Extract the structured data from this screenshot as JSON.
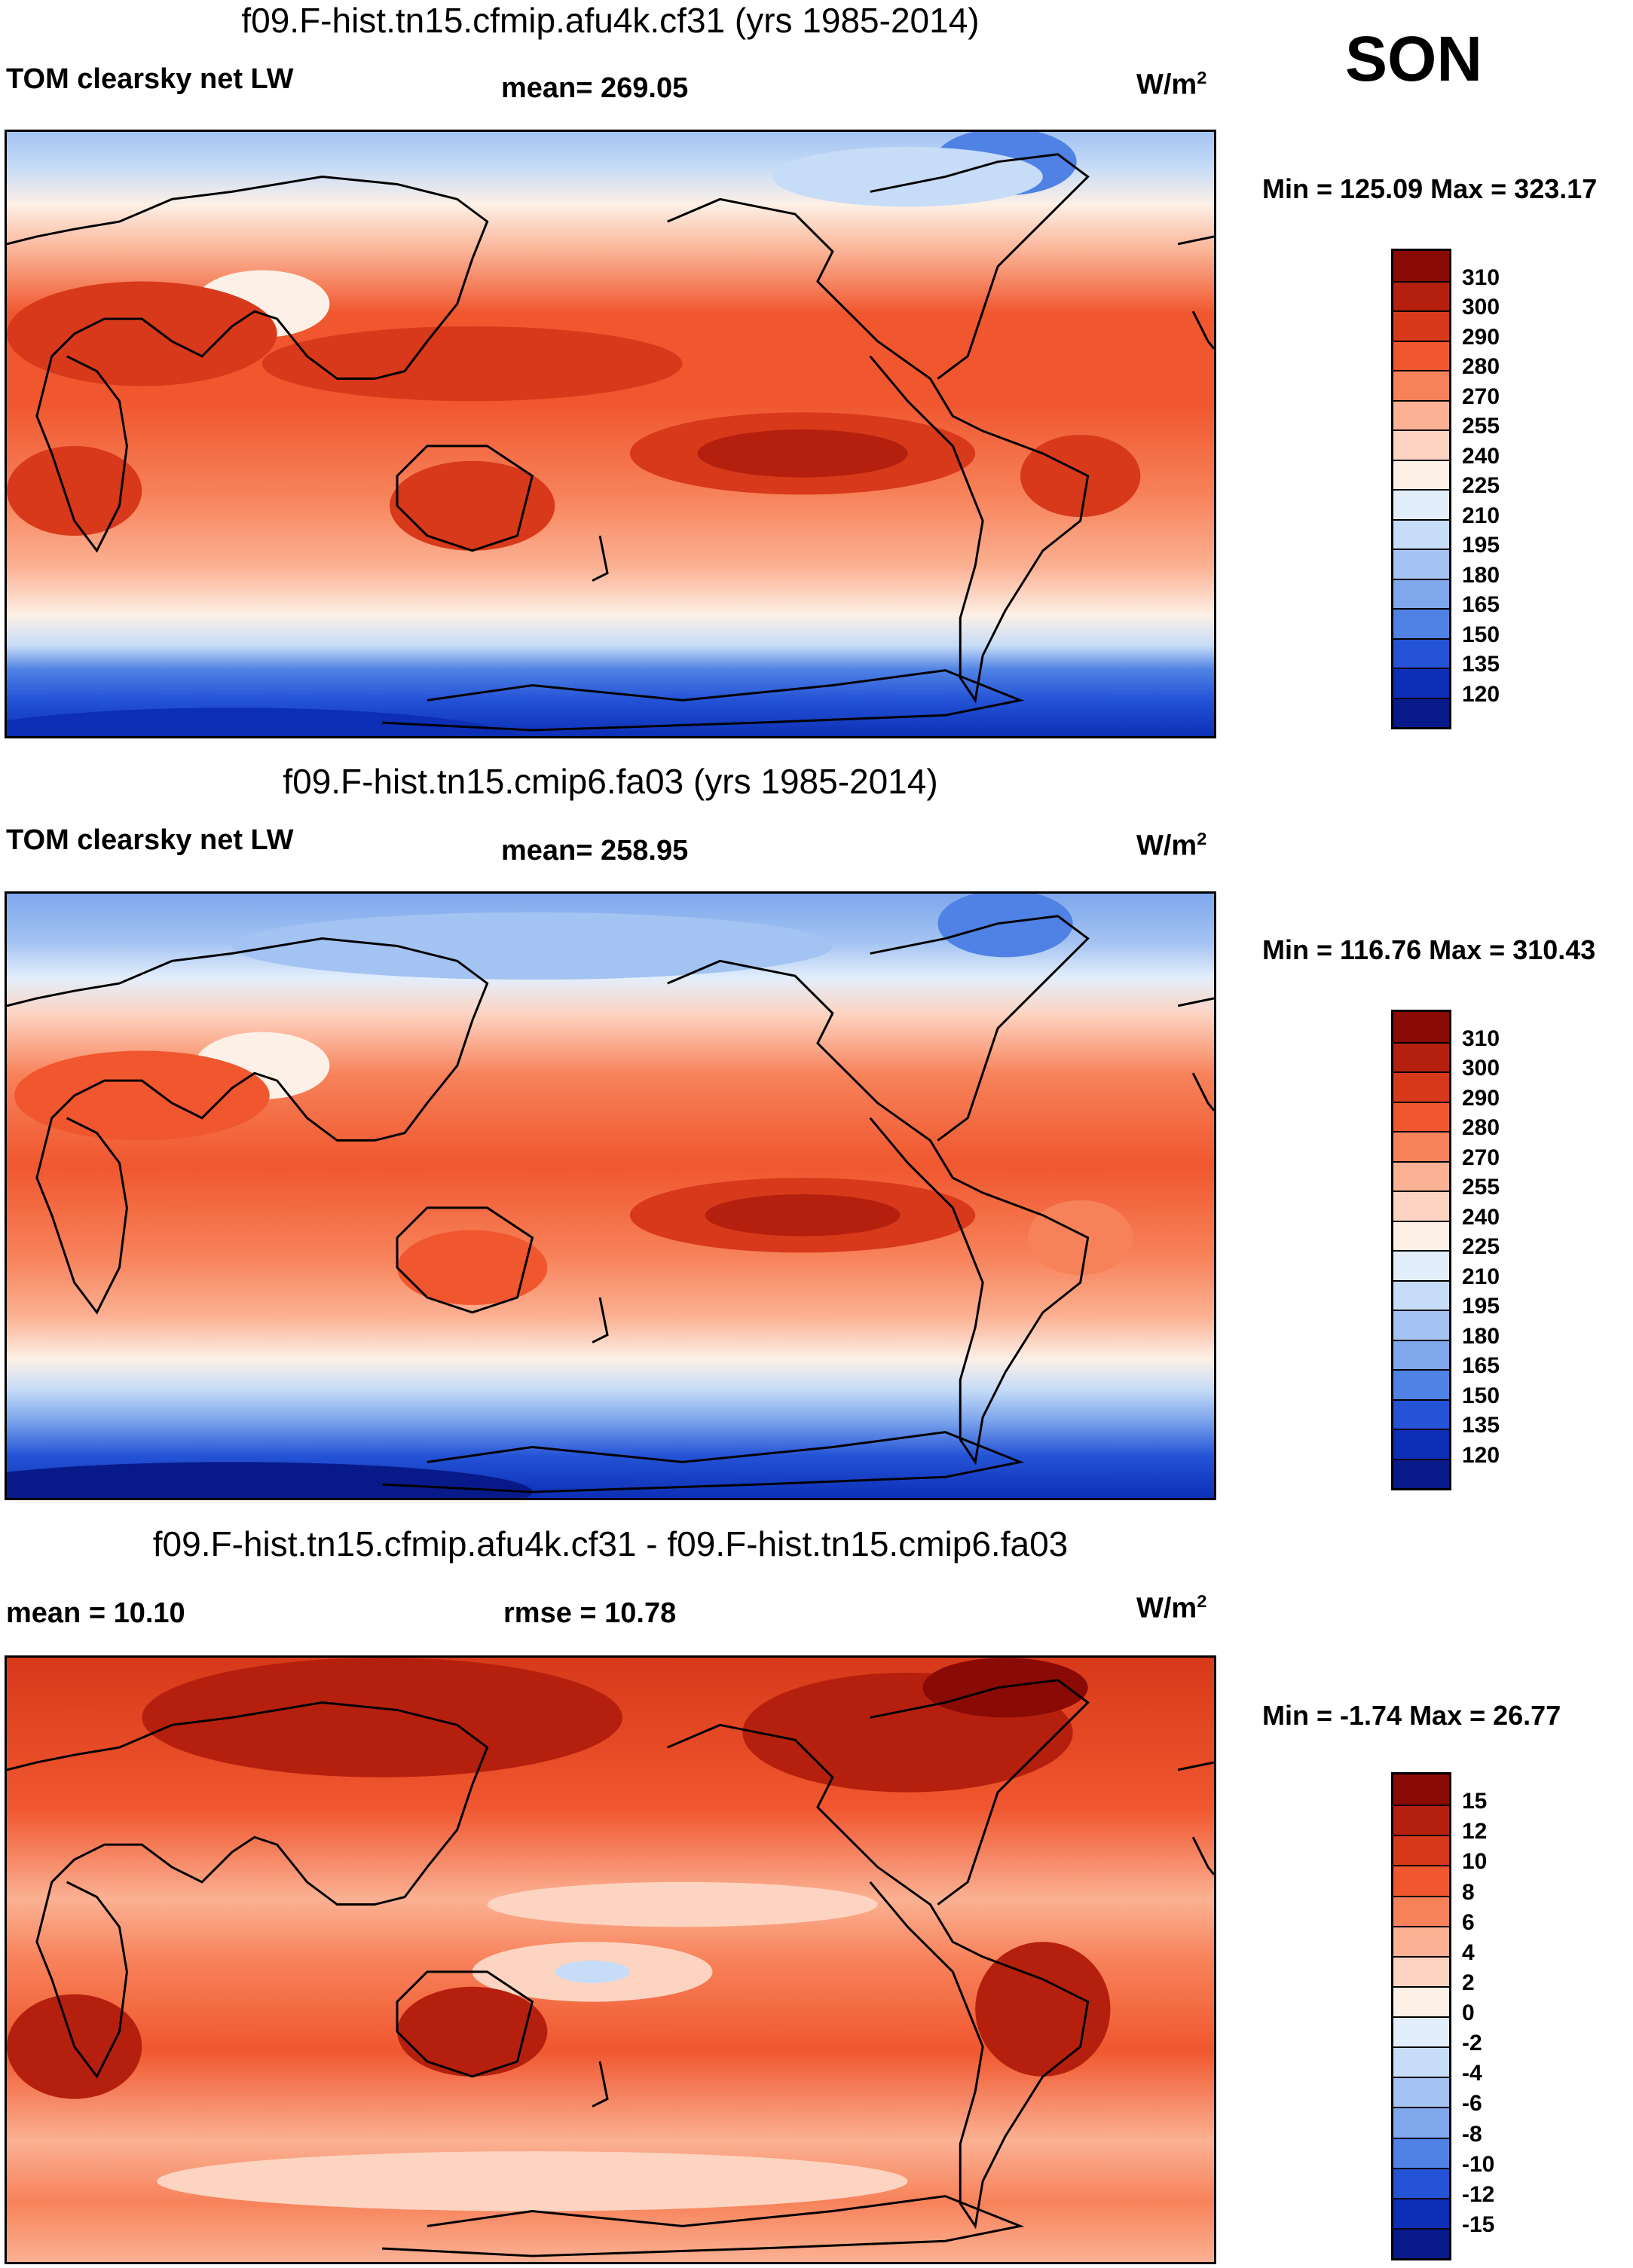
{
  "season": "SON",
  "panels": [
    {
      "title": "f09.F-hist.tn15.cfmip.afu4k.cf31 (yrs 1985-2014)",
      "left_label": "TOM clearsky net LW",
      "center_label": "mean= 269.05",
      "units_base": "W/m",
      "units_exp": "2",
      "minmax": "Min = 125.09 Max = 323.17",
      "colorbar_ticks": [
        "310",
        "300",
        "290",
        "280",
        "270",
        "255",
        "240",
        "225",
        "210",
        "195",
        "180",
        "165",
        "150",
        "135",
        "120"
      ],
      "colorbar_colors": [
        "#8a0a06",
        "#b5200e",
        "#d7391a",
        "#f0572f",
        "#f7825a",
        "#fbb193",
        "#fdd4c1",
        "#fdf0e6",
        "#e3eefb",
        "#c7dcf7",
        "#a3c3f2",
        "#7ea7ec",
        "#4f82e4",
        "#2453d6",
        "#0c2fb6",
        "#081a8a"
      ]
    },
    {
      "title": "f09.F-hist.tn15.cmip6.fa03 (yrs 1985-2014)",
      "left_label": "TOM clearsky net LW",
      "center_label": "mean= 258.95",
      "units_base": "W/m",
      "units_exp": "2",
      "minmax": "Min = 116.76 Max = 310.43",
      "colorbar_ticks": [
        "310",
        "300",
        "290",
        "280",
        "270",
        "255",
        "240",
        "225",
        "210",
        "195",
        "180",
        "165",
        "150",
        "135",
        "120"
      ],
      "colorbar_colors": [
        "#8a0a06",
        "#b5200e",
        "#d7391a",
        "#f0572f",
        "#f7825a",
        "#fbb193",
        "#fdd4c1",
        "#fdf0e6",
        "#e3eefb",
        "#c7dcf7",
        "#a3c3f2",
        "#7ea7ec",
        "#4f82e4",
        "#2453d6",
        "#0c2fb6",
        "#081a8a"
      ]
    },
    {
      "title": "f09.F-hist.tn15.cfmip.afu4k.cf31 - f09.F-hist.tn15.cmip6.fa03",
      "left_label": "mean =  10.10",
      "center_label": "rmse =  10.78",
      "units_base": "W/m",
      "units_exp": "2",
      "minmax": "Min =  -1.74 Max =  26.77",
      "colorbar_ticks": [
        "15",
        "12",
        "10",
        "8",
        "6",
        "4",
        "2",
        "0",
        "-2",
        "-4",
        "-6",
        "-8",
        "-10",
        "-12",
        "-15"
      ],
      "colorbar_colors": [
        "#8a0a06",
        "#b5200e",
        "#d7391a",
        "#f0572f",
        "#f7825a",
        "#fbb193",
        "#fdd4c1",
        "#fdf0e6",
        "#e3eefb",
        "#c7dcf7",
        "#a3c3f2",
        "#7ea7ec",
        "#4f82e4",
        "#2453d6",
        "#0c2fb6",
        "#081a8a"
      ]
    }
  ]
}
